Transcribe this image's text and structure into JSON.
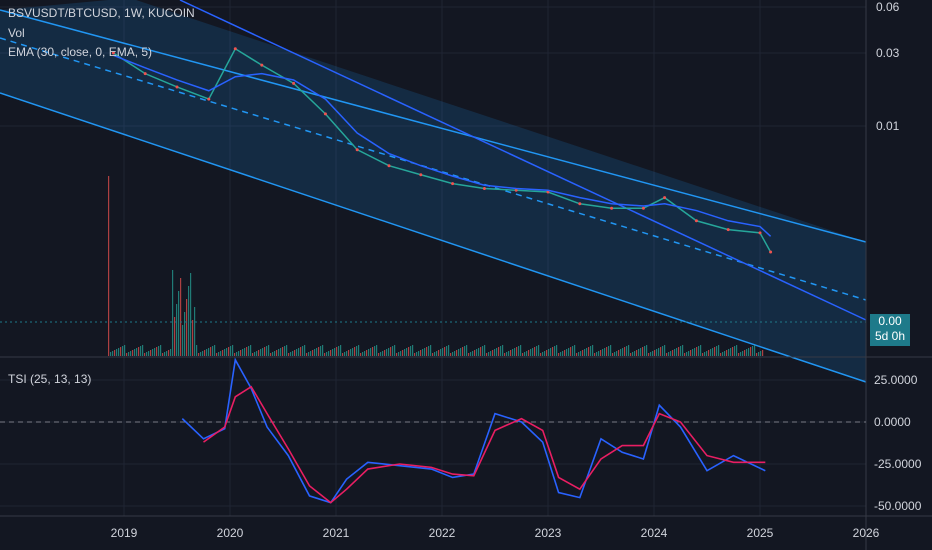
{
  "header": {
    "symbol_line": "BSVUSDT/BTCUSD, 1W, KUCOIN",
    "vol_label": "Vol",
    "ema_label": "EMA (30, close, 0, EMA, 5)",
    "tsi_label": "TSI (25, 13, 13)"
  },
  "price_badge": {
    "value": "0.00",
    "countdown": "5d 0h"
  },
  "colors": {
    "background": "#131722",
    "up": "#26a69a",
    "down": "#ef5350",
    "ema": "#2962ff",
    "channel": "#2196f3",
    "tsi": "#2962ff",
    "tsi_signal": "#e91e63"
  },
  "chart_data": [
    {
      "type": "line",
      "title": "BSVUSDT/BTCUSD, 1W, KUCOIN",
      "scale": "log",
      "y_ticks": [
        "0.06",
        "0.03",
        "0.01"
      ],
      "x_ticks": [
        "2019",
        "2020",
        "2021",
        "2022",
        "2023",
        "2024",
        "2025",
        "2026"
      ],
      "x": [
        2018.9,
        2019.2,
        2019.5,
        2019.8,
        2020.05,
        2020.3,
        2020.6,
        2020.9,
        2021.2,
        2021.5,
        2021.8,
        2022.1,
        2022.4,
        2022.7,
        2023.0,
        2023.3,
        2023.6,
        2023.9,
        2024.1,
        2024.4,
        2024.7,
        2025.0,
        2025.1
      ],
      "series": [
        {
          "values": [
            0.03,
            0.022,
            0.018,
            0.015,
            0.032,
            0.025,
            0.019,
            0.012,
            0.007,
            0.0055,
            0.0048,
            0.0042,
            0.0039,
            0.0038,
            0.0037,
            0.0031,
            0.0029,
            0.0029,
            0.0034,
            0.0024,
            0.0021,
            0.002,
            0.0015
          ]
        }
      ],
      "ema_30": [
        0.029,
        0.024,
        0.02,
        0.017,
        0.021,
        0.022,
        0.02,
        0.015,
        0.009,
        0.0066,
        0.0055,
        0.0047,
        0.0041,
        0.0039,
        0.0038,
        0.0034,
        0.0031,
        0.003,
        0.0031,
        0.0028,
        0.0024,
        0.0022,
        0.0019
      ],
      "last_price_label": "0.00"
    },
    {
      "type": "line",
      "title": "TSI (25, 13, 13)",
      "y_ticks": [
        "25.0000",
        "0.0000",
        "-25.0000",
        "-50.0000"
      ],
      "x": [
        2019.55,
        2019.75,
        2019.95,
        2020.05,
        2020.2,
        2020.35,
        2020.55,
        2020.75,
        2020.95,
        2021.1,
        2021.3,
        2021.6,
        2021.9,
        2022.1,
        2022.3,
        2022.5,
        2022.75,
        2022.95,
        2023.1,
        2023.3,
        2023.5,
        2023.7,
        2023.9,
        2024.05,
        2024.25,
        2024.5,
        2024.75,
        2025.05
      ],
      "series": [
        {
          "values": [
            2,
            -10,
            -4,
            37,
            20,
            -3,
            -20,
            -44,
            -48,
            -34,
            -24,
            -26,
            -28,
            -33,
            -31,
            5,
            0,
            -12,
            -42,
            -45,
            -10,
            -18,
            -22,
            10,
            -3,
            -29,
            -20,
            -29
          ]
        },
        {
          "values": [
            null,
            -12,
            -3,
            15,
            21,
            5,
            -16,
            -38,
            -48,
            -40,
            -28,
            -25,
            -27,
            -31,
            -32,
            -5,
            2,
            -5,
            -33,
            -40,
            -22,
            -14,
            -14,
            5,
            0,
            -20,
            -24,
            -24
          ]
        }
      ]
    }
  ]
}
